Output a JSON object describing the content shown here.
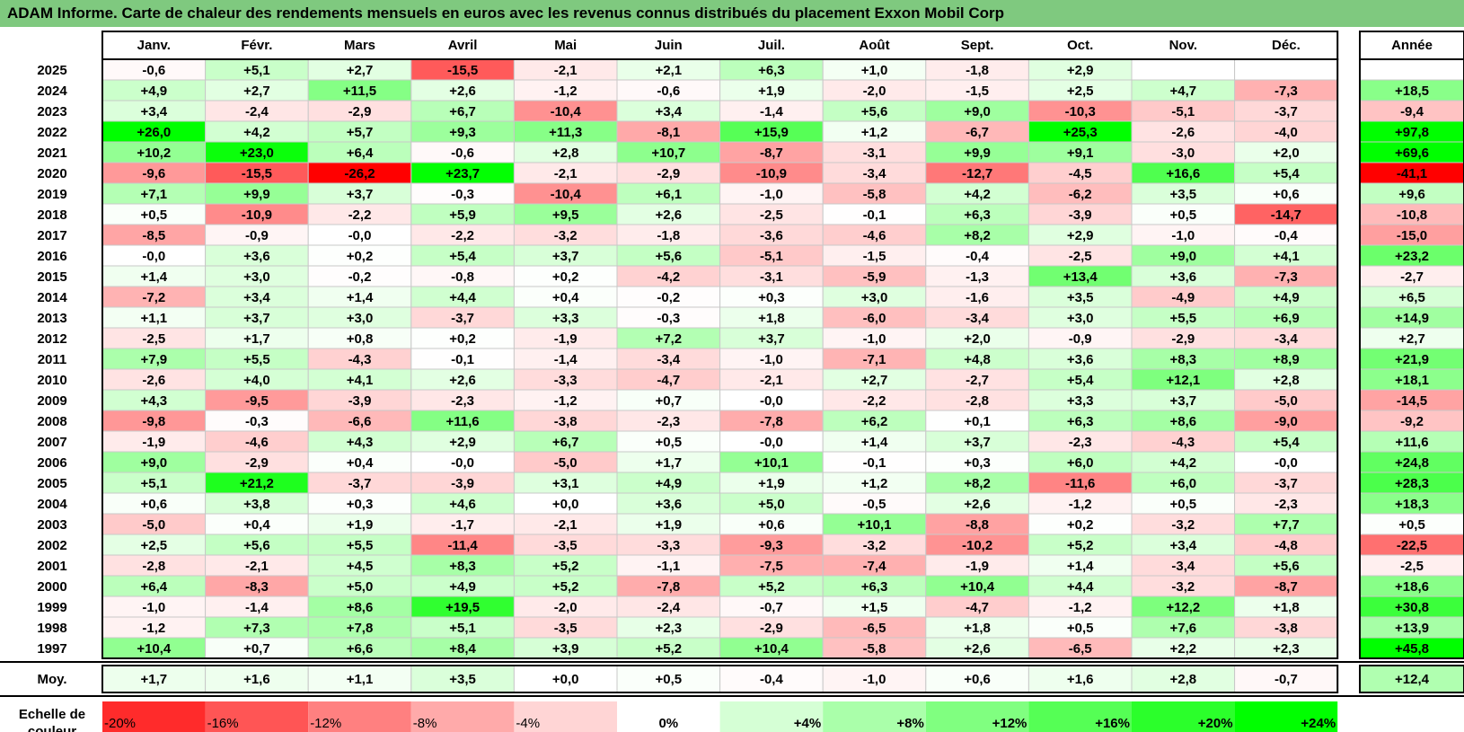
{
  "title": "ADAM Informe. Carte de chaleur des rendements mensuels en euros avec les revenus connus distribués du placement Exxon Mobil Corp",
  "colors": {
    "title_bg": "#7fc97f",
    "positive_max": "#00ff00",
    "negative_max": "#ff0000",
    "neutral": "#ffffff"
  },
  "chart_data": {
    "type": "heatmap",
    "columns": [
      "Janv.",
      "Févr.",
      "Mars",
      "Avril",
      "Mai",
      "Juin",
      "Juil.",
      "Août",
      "Sept.",
      "Oct.",
      "Nov.",
      "Déc."
    ],
    "year_column": "Année",
    "rows": [
      {
        "year": "2025",
        "values": [
          "-0,6",
          "+5,1",
          "+2,7",
          "-15,5",
          "-2,1",
          "+2,1",
          "+6,3",
          "+1,0",
          "-1,8",
          "+2,9",
          "",
          ""
        ],
        "annual": ""
      },
      {
        "year": "2024",
        "values": [
          "+4,9",
          "+2,7",
          "+11,5",
          "+2,6",
          "-1,2",
          "-0,6",
          "+1,9",
          "-2,0",
          "-1,5",
          "+2,5",
          "+4,7",
          "-7,3"
        ],
        "annual": "+18,5"
      },
      {
        "year": "2023",
        "values": [
          "+3,4",
          "-2,4",
          "-2,9",
          "+6,7",
          "-10,4",
          "+3,4",
          "-1,4",
          "+5,6",
          "+9,0",
          "-10,3",
          "-5,1",
          "-3,7"
        ],
        "annual": "-9,4"
      },
      {
        "year": "2022",
        "values": [
          "+26,0",
          "+4,2",
          "+5,7",
          "+9,3",
          "+11,3",
          "-8,1",
          "+15,9",
          "+1,2",
          "-6,7",
          "+25,3",
          "-2,6",
          "-4,0"
        ],
        "annual": "+97,8"
      },
      {
        "year": "2021",
        "values": [
          "+10,2",
          "+23,0",
          "+6,4",
          "-0,6",
          "+2,8",
          "+10,7",
          "-8,7",
          "-3,1",
          "+9,9",
          "+9,1",
          "-3,0",
          "+2,0"
        ],
        "annual": "+69,6"
      },
      {
        "year": "2020",
        "values": [
          "-9,6",
          "-15,5",
          "-26,2",
          "+23,7",
          "-2,1",
          "-2,9",
          "-10,9",
          "-3,4",
          "-12,7",
          "-4,5",
          "+16,6",
          "+5,4"
        ],
        "annual": "-41,1"
      },
      {
        "year": "2019",
        "values": [
          "+7,1",
          "+9,9",
          "+3,7",
          "-0,3",
          "-10,4",
          "+6,1",
          "-1,0",
          "-5,8",
          "+4,2",
          "-6,2",
          "+3,5",
          "+0,6"
        ],
        "annual": "+9,6"
      },
      {
        "year": "2018",
        "values": [
          "+0,5",
          "-10,9",
          "-2,2",
          "+5,9",
          "+9,5",
          "+2,6",
          "-2,5",
          "-0,1",
          "+6,3",
          "-3,9",
          "+0,5",
          "-14,7"
        ],
        "annual": "-10,8"
      },
      {
        "year": "2017",
        "values": [
          "-8,5",
          "-0,9",
          "-0,0",
          "-2,2",
          "-3,2",
          "-1,8",
          "-3,6",
          "-4,6",
          "+8,2",
          "+2,9",
          "-1,0",
          "-0,4"
        ],
        "annual": "-15,0"
      },
      {
        "year": "2016",
        "values": [
          "-0,0",
          "+3,6",
          "+0,2",
          "+5,4",
          "+3,7",
          "+5,6",
          "-5,1",
          "-1,5",
          "-0,4",
          "-2,5",
          "+9,0",
          "+4,1"
        ],
        "annual": "+23,2"
      },
      {
        "year": "2015",
        "values": [
          "+1,4",
          "+3,0",
          "-0,2",
          "-0,8",
          "+0,2",
          "-4,2",
          "-3,1",
          "-5,9",
          "-1,3",
          "+13,4",
          "+3,6",
          "-7,3"
        ],
        "annual": "-2,7"
      },
      {
        "year": "2014",
        "values": [
          "-7,2",
          "+3,4",
          "+1,4",
          "+4,4",
          "+0,4",
          "-0,2",
          "+0,3",
          "+3,0",
          "-1,6",
          "+3,5",
          "-4,9",
          "+4,9"
        ],
        "annual": "+6,5"
      },
      {
        "year": "2013",
        "values": [
          "+1,1",
          "+3,7",
          "+3,0",
          "-3,7",
          "+3,3",
          "-0,3",
          "+1,8",
          "-6,0",
          "-3,4",
          "+3,0",
          "+5,5",
          "+6,9"
        ],
        "annual": "+14,9"
      },
      {
        "year": "2012",
        "values": [
          "-2,5",
          "+1,7",
          "+0,8",
          "+0,2",
          "-1,9",
          "+7,2",
          "+3,7",
          "-1,0",
          "+2,0",
          "-0,9",
          "-2,9",
          "-3,4"
        ],
        "annual": "+2,7"
      },
      {
        "year": "2011",
        "values": [
          "+7,9",
          "+5,5",
          "-4,3",
          "-0,1",
          "-1,4",
          "-3,4",
          "-1,0",
          "-7,1",
          "+4,8",
          "+3,6",
          "+8,3",
          "+8,9"
        ],
        "annual": "+21,9"
      },
      {
        "year": "2010",
        "values": [
          "-2,6",
          "+4,0",
          "+4,1",
          "+2,6",
          "-3,3",
          "-4,7",
          "-2,1",
          "+2,7",
          "-2,7",
          "+5,4",
          "+12,1",
          "+2,8"
        ],
        "annual": "+18,1"
      },
      {
        "year": "2009",
        "values": [
          "+4,3",
          "-9,5",
          "-3,9",
          "-2,3",
          "-1,2",
          "+0,7",
          "-0,0",
          "-2,2",
          "-2,8",
          "+3,3",
          "+3,7",
          "-5,0"
        ],
        "annual": "-14,5"
      },
      {
        "year": "2008",
        "values": [
          "-9,8",
          "-0,3",
          "-6,6",
          "+11,6",
          "-3,8",
          "-2,3",
          "-7,8",
          "+6,2",
          "+0,1",
          "+6,3",
          "+8,6",
          "-9,0"
        ],
        "annual": "-9,2"
      },
      {
        "year": "2007",
        "values": [
          "-1,9",
          "-4,6",
          "+4,3",
          "+2,9",
          "+6,7",
          "+0,5",
          "-0,0",
          "+1,4",
          "+3,7",
          "-2,3",
          "-4,3",
          "+5,4"
        ],
        "annual": "+11,6"
      },
      {
        "year": "2006",
        "values": [
          "+9,0",
          "-2,9",
          "+0,4",
          "-0,0",
          "-5,0",
          "+1,7",
          "+10,1",
          "-0,1",
          "+0,3",
          "+6,0",
          "+4,2",
          "-0,0"
        ],
        "annual": "+24,8"
      },
      {
        "year": "2005",
        "values": [
          "+5,1",
          "+21,2",
          "-3,7",
          "-3,9",
          "+3,1",
          "+4,9",
          "+1,9",
          "+1,2",
          "+8,2",
          "-11,6",
          "+6,0",
          "-3,7"
        ],
        "annual": "+28,3"
      },
      {
        "year": "2004",
        "values": [
          "+0,6",
          "+3,8",
          "+0,3",
          "+4,6",
          "+0,0",
          "+3,6",
          "+5,0",
          "-0,5",
          "+2,6",
          "-1,2",
          "+0,5",
          "-2,3"
        ],
        "annual": "+18,3"
      },
      {
        "year": "2003",
        "values": [
          "-5,0",
          "+0,4",
          "+1,9",
          "-1,7",
          "-2,1",
          "+1,9",
          "+0,6",
          "+10,1",
          "-8,8",
          "+0,2",
          "-3,2",
          "+7,7"
        ],
        "annual": "+0,5"
      },
      {
        "year": "2002",
        "values": [
          "+2,5",
          "+5,6",
          "+5,5",
          "-11,4",
          "-3,5",
          "-3,3",
          "-9,3",
          "-3,2",
          "-10,2",
          "+5,2",
          "+3,4",
          "-4,8"
        ],
        "annual": "-22,5"
      },
      {
        "year": "2001",
        "values": [
          "-2,8",
          "-2,1",
          "+4,5",
          "+8,3",
          "+5,2",
          "-1,1",
          "-7,5",
          "-7,4",
          "-1,9",
          "+1,4",
          "-3,4",
          "+5,6"
        ],
        "annual": "-2,5"
      },
      {
        "year": "2000",
        "values": [
          "+6,4",
          "-8,3",
          "+5,0",
          "+4,9",
          "+5,2",
          "-7,8",
          "+5,2",
          "+6,3",
          "+10,4",
          "+4,4",
          "-3,2",
          "-8,7"
        ],
        "annual": "+18,6"
      },
      {
        "year": "1999",
        "values": [
          "-1,0",
          "-1,4",
          "+8,6",
          "+19,5",
          "-2,0",
          "-2,4",
          "-0,7",
          "+1,5",
          "-4,7",
          "-1,2",
          "+12,2",
          "+1,8"
        ],
        "annual": "+30,8"
      },
      {
        "year": "1998",
        "values": [
          "-1,2",
          "+7,3",
          "+7,8",
          "+5,1",
          "-3,5",
          "+2,3",
          "-2,9",
          "-6,5",
          "+1,8",
          "+0,5",
          "+7,6",
          "-3,8"
        ],
        "annual": "+13,9"
      },
      {
        "year": "1997",
        "values": [
          "+10,4",
          "+0,7",
          "+6,6",
          "+8,4",
          "+3,9",
          "+5,2",
          "+10,4",
          "-5,8",
          "+2,6",
          "-6,5",
          "+2,2",
          "+2,3"
        ],
        "annual": "+45,8"
      }
    ],
    "average": {
      "label": "Moy.",
      "values": [
        "+1,7",
        "+1,6",
        "+1,1",
        "+3,5",
        "+0,0",
        "+0,5",
        "-0,4",
        "-1,0",
        "+0,6",
        "+1,6",
        "+2,8",
        "-0,7"
      ],
      "annual": "+12,4"
    },
    "scale": {
      "label_line1": "Echelle de",
      "label_line2": "couleur",
      "steps": [
        {
          "label": "-20%",
          "value": -20
        },
        {
          "label": "-16%",
          "value": -16
        },
        {
          "label": "-12%",
          "value": -12
        },
        {
          "label": "-8%",
          "value": -8
        },
        {
          "label": "-4%",
          "value": -4
        },
        {
          "label": "0%",
          "value": 0
        },
        {
          "label": "+4%",
          "value": 4
        },
        {
          "label": "+8%",
          "value": 8
        },
        {
          "label": "+12%",
          "value": 12
        },
        {
          "label": "+16%",
          "value": 16
        },
        {
          "label": "+20%",
          "value": 20
        },
        {
          "label": "+24%",
          "value": 24
        }
      ]
    },
    "monthly_color_range": [
      -24,
      24
    ],
    "annual_color_range": [
      -40,
      40
    ]
  }
}
